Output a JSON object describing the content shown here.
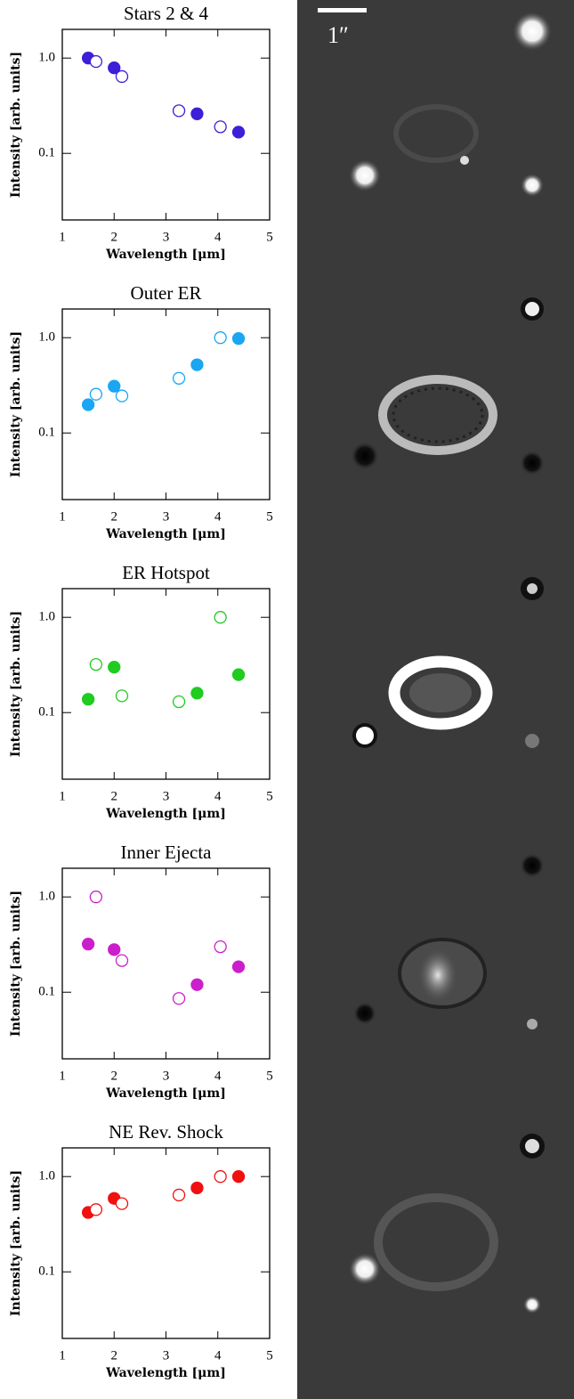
{
  "chart_data": [
    {
      "type": "scatter",
      "title": "Stars 2 & 4",
      "xlabel": "Wavelength [μm]",
      "ylabel": "Intensity [arb. units]",
      "log_y": true,
      "xlim": [
        1,
        5
      ],
      "xticks": [
        1,
        2,
        3,
        4,
        5
      ],
      "ylim": [
        0.02,
        2
      ],
      "yticks": [
        {
          "value": 1,
          "label": "1.0"
        },
        0.1
      ],
      "series": [
        {
          "color": "#3c1fd6",
          "filled": true,
          "x": [
            1.5,
            2.0,
            3.6,
            4.4
          ],
          "values": [
            1.0,
            0.79,
            0.26,
            0.167
          ]
        },
        {
          "color": "#3c1fd6",
          "filled": false,
          "x": [
            1.65,
            2.15,
            3.25,
            4.05
          ],
          "values": [
            0.92,
            0.64,
            0.28,
            0.19
          ]
        }
      ]
    },
    {
      "type": "scatter",
      "title": "Outer ER",
      "xlabel": "Wavelength [μm]",
      "ylabel": "Intensity [arb. units]",
      "log_y": true,
      "xlim": [
        1,
        5
      ],
      "xticks": [
        1,
        2,
        3,
        4,
        5
      ],
      "ylim": [
        0.02,
        2
      ],
      "yticks": [
        {
          "value": 1,
          "label": "1.0"
        },
        0.1
      ],
      "series": [
        {
          "color": "#1aa6f2",
          "filled": true,
          "x": [
            1.5,
            2.0,
            3.6,
            4.4
          ],
          "values": [
            0.198,
            0.31,
            0.52,
            0.98
          ]
        },
        {
          "color": "#1aa6f2",
          "filled": false,
          "x": [
            1.65,
            2.15,
            3.25,
            4.05
          ],
          "values": [
            0.255,
            0.245,
            0.375,
            1.0
          ]
        }
      ]
    },
    {
      "type": "scatter",
      "title": "ER Hotspot",
      "xlabel": "Wavelength [μm]",
      "ylabel": "Intensity [arb. units]",
      "log_y": true,
      "xlim": [
        1,
        5
      ],
      "xticks": [
        1,
        2,
        3,
        4,
        5
      ],
      "ylim": [
        0.02,
        2
      ],
      "yticks": [
        {
          "value": 1,
          "label": "1.0"
        },
        0.1
      ],
      "series": [
        {
          "color": "#1fcc1f",
          "filled": true,
          "x": [
            1.5,
            2.0,
            3.6,
            4.4
          ],
          "values": [
            0.138,
            0.3,
            0.16,
            0.25
          ]
        },
        {
          "color": "#1fcc1f",
          "filled": false,
          "x": [
            1.65,
            2.15,
            3.25,
            4.05
          ],
          "values": [
            0.32,
            0.15,
            0.13,
            1.0
          ]
        }
      ]
    },
    {
      "type": "scatter",
      "title": "Inner Ejecta",
      "xlabel": "Wavelength [μm]",
      "ylabel": "Intensity [arb. units]",
      "log_y": true,
      "xlim": [
        1,
        5
      ],
      "xticks": [
        1,
        2,
        3,
        4,
        5
      ],
      "ylim": [
        0.02,
        2
      ],
      "yticks": [
        {
          "value": 1,
          "label": "1.0"
        },
        0.1
      ],
      "series": [
        {
          "color": "#cc1fcc",
          "filled": true,
          "x": [
            1.5,
            2.0,
            3.6,
            4.4
          ],
          "values": [
            0.32,
            0.28,
            0.12,
            0.185
          ]
        },
        {
          "color": "#cc1fcc",
          "filled": false,
          "x": [
            1.65,
            2.15,
            3.25,
            4.05
          ],
          "values": [
            1.0,
            0.215,
            0.086,
            0.3
          ]
        }
      ]
    },
    {
      "type": "scatter",
      "title": "NE Rev. Shock",
      "xlabel": "Wavelength [μm]",
      "ylabel": "Intensity [arb. units]",
      "log_y": true,
      "xlim": [
        1,
        5
      ],
      "xticks": [
        1,
        2,
        3,
        4,
        5
      ],
      "ylim": [
        0.02,
        2
      ],
      "yticks": [
        {
          "value": 1,
          "label": "1.0"
        },
        0.1
      ],
      "series": [
        {
          "color": "#f01010",
          "filled": true,
          "x": [
            1.5,
            2.0,
            3.6,
            4.4
          ],
          "values": [
            0.42,
            0.59,
            0.76,
            1.0
          ]
        },
        {
          "color": "#f01010",
          "filled": false,
          "x": [
            1.65,
            2.15,
            3.25,
            4.05
          ],
          "values": [
            0.45,
            0.52,
            0.64,
            1.0
          ]
        }
      ]
    }
  ],
  "image_panel": {
    "scale_label": "1″"
  }
}
